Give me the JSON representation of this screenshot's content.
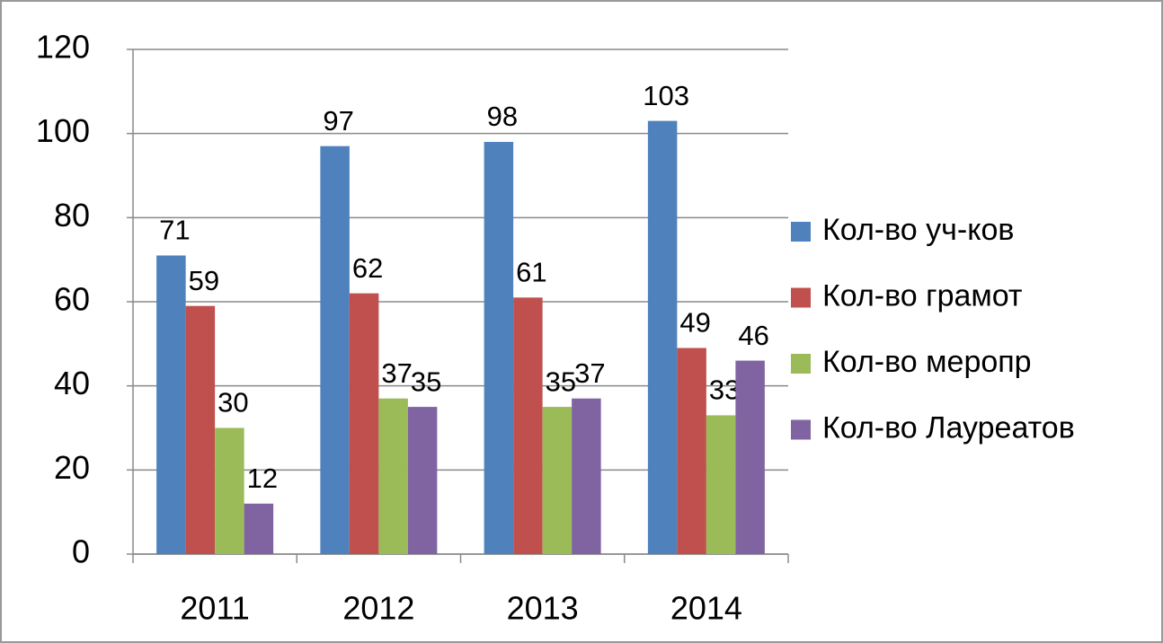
{
  "chart_data": {
    "type": "bar",
    "categories": [
      "2011",
      "2012",
      "2013",
      "2014"
    ],
    "series": [
      {
        "name": "Кол-во уч-ков",
        "color": "#4f81bd",
        "values": [
          71,
          97,
          98,
          103
        ]
      },
      {
        "name": "Кол-во грамот",
        "color": "#c0504d",
        "values": [
          59,
          62,
          61,
          49
        ]
      },
      {
        "name": "Кол-во меропр",
        "color": "#9bbb59",
        "values": [
          30,
          37,
          35,
          33
        ]
      },
      {
        "name": "Кол-во Лауреатов",
        "color": "#8064a2",
        "values": [
          12,
          35,
          37,
          46
        ]
      }
    ],
    "ylim": [
      0,
      120
    ],
    "yticks": [
      0,
      20,
      40,
      60,
      80,
      100,
      120
    ],
    "grid": true,
    "legend": "right"
  }
}
